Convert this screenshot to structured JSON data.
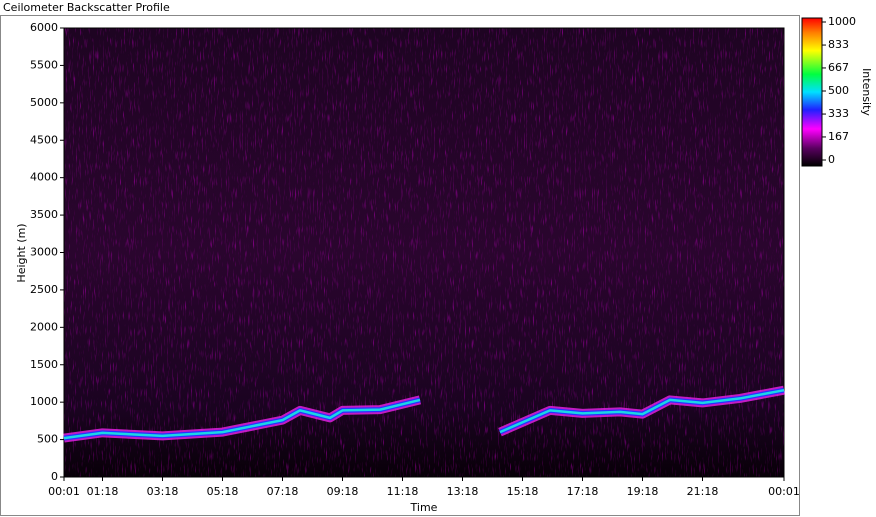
{
  "chart_data": {
    "type": "heatmap",
    "title": "Ceilometer Backscatter Profile",
    "x_label": "Time",
    "y_label": "Height (m)",
    "colorbar_label": "Intensity",
    "xlim": [
      1,
      1441
    ],
    "xticks": [
      {
        "value": 1,
        "label": "00:01"
      },
      {
        "value": 78,
        "label": "01:18"
      },
      {
        "value": 198,
        "label": "03:18"
      },
      {
        "value": 318,
        "label": "05:18"
      },
      {
        "value": 438,
        "label": "07:18"
      },
      {
        "value": 558,
        "label": "09:18"
      },
      {
        "value": 678,
        "label": "11:18"
      },
      {
        "value": 798,
        "label": "13:18"
      },
      {
        "value": 918,
        "label": "15:18"
      },
      {
        "value": 1038,
        "label": "17:18"
      },
      {
        "value": 1158,
        "label": "19:18"
      },
      {
        "value": 1278,
        "label": "21:18"
      },
      {
        "value": 1441,
        "label": "00:01"
      }
    ],
    "ylim": [
      0,
      6000
    ],
    "yticks": [
      0,
      500,
      1000,
      1500,
      2000,
      2500,
      3000,
      3500,
      4000,
      4500,
      5000,
      5500,
      6000
    ],
    "clim": [
      0,
      1000
    ],
    "cticks": [
      0,
      167,
      333,
      500,
      667,
      833,
      1000
    ],
    "layer": {
      "color": "#19d6e6",
      "x": [
        1,
        78,
        198,
        318,
        438,
        473,
        533,
        558,
        633,
        713,
        798,
        873,
        973,
        1038,
        1113,
        1158,
        1213,
        1278,
        1353,
        1441
      ],
      "values": [
        520,
        590,
        550,
        600,
        760,
        890,
        790,
        890,
        900,
        1030,
        null,
        600,
        890,
        850,
        870,
        840,
        1030,
        990,
        1050,
        1160
      ]
    }
  }
}
